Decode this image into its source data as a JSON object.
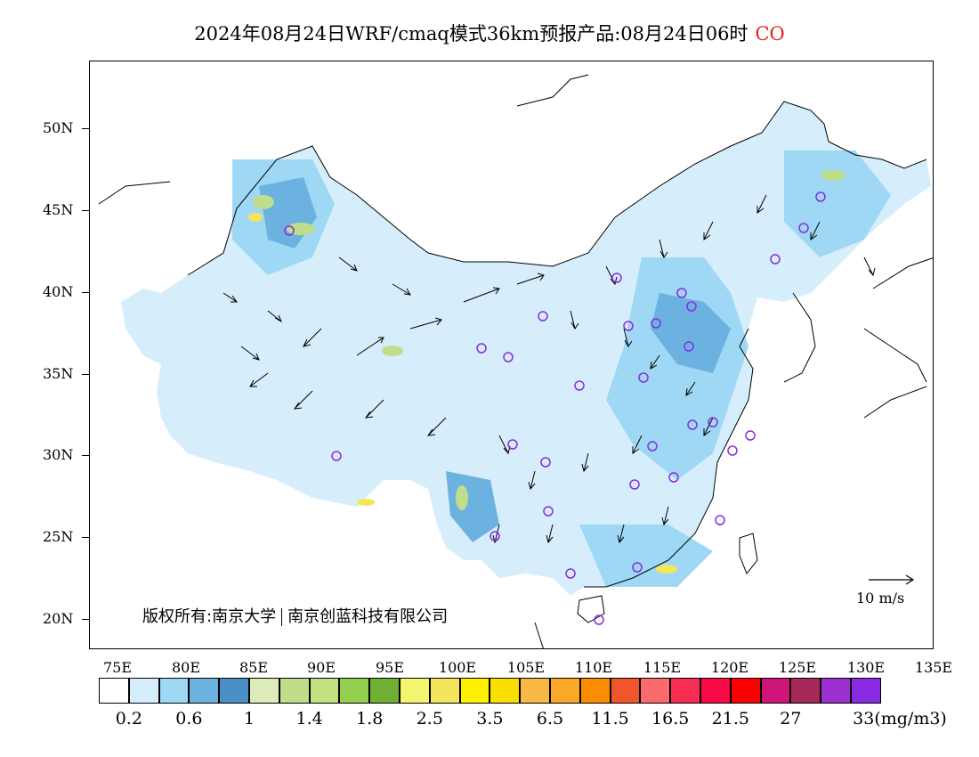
{
  "title": {
    "text": "2024年08月24日WRF/cmaq模式36km预报产品:08月24日06时",
    "species": "CO",
    "species_color": "#e0251b"
  },
  "axes": {
    "lat_labels": [
      "50N",
      "45N",
      "40N",
      "35N",
      "30N",
      "25N",
      "20N"
    ],
    "lon_labels": [
      "75E",
      "80E",
      "85E",
      "90E",
      "95E",
      "100E",
      "105E",
      "110E",
      "115E",
      "120E",
      "125E",
      "130E",
      "135E"
    ]
  },
  "copyright": {
    "part1": "版权所有:南京大学",
    "part2": "南京创蓝科技有限公司"
  },
  "reference_vector": {
    "label": "10 m/s"
  },
  "colorbar": {
    "colors": [
      "#ffffff",
      "#d6eefb",
      "#9fd8f5",
      "#6cb2e0",
      "#4a8ec8",
      "#dcebb9",
      "#bfdd8a",
      "#c3e080",
      "#93cf4f",
      "#6fb034",
      "#f3f56e",
      "#f3e65a",
      "#fff000",
      "#f9df00",
      "#f9b843",
      "#fba826",
      "#fb8c00",
      "#f0562c",
      "#fb6b6b",
      "#f72d52",
      "#f70a46",
      "#fb0000",
      "#cf1579",
      "#a62a59",
      "#9b2fd0",
      "#8a2be2"
    ],
    "labels": [
      "0.2",
      "0.6",
      "1",
      "1.4",
      "1.8",
      "2.5",
      "3.5",
      "6.5",
      "11.5",
      "16.5",
      "21.5",
      "27",
      "33(mg/m3)"
    ]
  },
  "map_layers": {
    "concentration_fill": "blue shades over China",
    "wind_vectors": "black arrows",
    "stations": "purple circles",
    "station_color": "#8a2be2"
  }
}
